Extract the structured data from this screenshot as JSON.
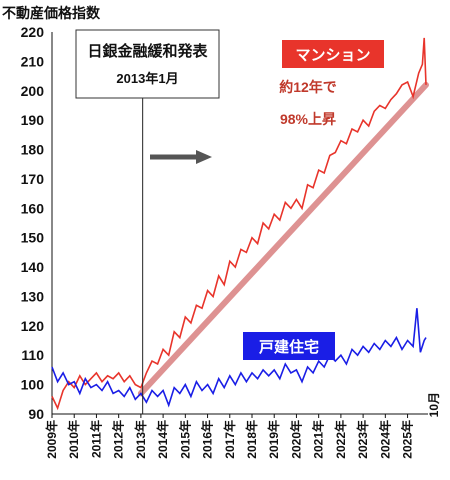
{
  "chart_data": {
    "type": "line",
    "ylabel": "不動産価格指数",
    "ylim": [
      90,
      220
    ],
    "yticks": [
      90,
      100,
      110,
      120,
      130,
      140,
      150,
      160,
      170,
      180,
      190,
      200,
      210,
      220
    ],
    "xlim": [
      2009.0,
      2025.92
    ],
    "xticks": [
      "2009年",
      "2010年",
      "2011年",
      "2012年",
      "2013年",
      "2014年",
      "2015年",
      "2016年",
      "2017年",
      "2018年",
      "2019年",
      "2020年",
      "2021年",
      "2022年",
      "2023年",
      "2024年",
      "2025年"
    ],
    "xtick_values": [
      2009,
      2010,
      2011,
      2012,
      2013,
      2014,
      2015,
      2016,
      2017,
      2018,
      2019,
      2020,
      2021,
      2022,
      2023,
      2024,
      2025
    ],
    "x_end_label": "10月",
    "grid": false,
    "series": [
      {
        "name": "マンション",
        "color": "#e8342b",
        "x": [
          2009.0,
          2009.25,
          2009.5,
          2009.75,
          2010.0,
          2010.25,
          2010.5,
          2010.75,
          2011.0,
          2011.25,
          2011.5,
          2011.75,
          2012.0,
          2012.25,
          2012.5,
          2012.75,
          2013.0,
          2013.25,
          2013.5,
          2013.75,
          2014.0,
          2014.25,
          2014.5,
          2014.75,
          2015.0,
          2015.25,
          2015.5,
          2015.75,
          2016.0,
          2016.25,
          2016.5,
          2016.75,
          2017.0,
          2017.25,
          2017.5,
          2017.75,
          2018.0,
          2018.25,
          2018.5,
          2018.75,
          2019.0,
          2019.25,
          2019.5,
          2019.75,
          2020.0,
          2020.25,
          2020.5,
          2020.75,
          2021.0,
          2021.25,
          2021.5,
          2021.75,
          2022.0,
          2022.25,
          2022.5,
          2022.75,
          2023.0,
          2023.25,
          2023.5,
          2023.75,
          2024.0,
          2024.25,
          2024.5,
          2024.75,
          2025.0,
          2025.25,
          2025.5,
          2025.67,
          2025.75,
          2025.83
        ],
        "values": [
          96,
          92,
          98,
          101,
          99,
          103,
          100,
          102,
          104,
          101,
          103,
          102,
          104,
          101,
          103,
          100,
          99,
          104,
          108,
          107,
          112,
          110,
          118,
          116,
          123,
          121,
          127,
          126,
          132,
          130,
          137,
          134,
          142,
          140,
          146,
          145,
          150,
          148,
          155,
          153,
          158,
          156,
          162,
          160,
          163,
          160,
          168,
          167,
          173,
          172,
          178,
          179,
          183,
          182,
          187,
          186,
          190,
          188,
          193,
          195,
          194,
          197,
          199,
          202,
          203,
          198,
          206,
          209,
          218,
          202
        ]
      },
      {
        "name": "戸建住宅",
        "color": "#1a1ee6",
        "x": [
          2009.0,
          2009.25,
          2009.5,
          2009.75,
          2010.0,
          2010.25,
          2010.5,
          2010.75,
          2011.0,
          2011.25,
          2011.5,
          2011.75,
          2012.0,
          2012.25,
          2012.5,
          2012.75,
          2013.0,
          2013.25,
          2013.5,
          2013.75,
          2014.0,
          2014.25,
          2014.5,
          2014.75,
          2015.0,
          2015.25,
          2015.5,
          2015.75,
          2016.0,
          2016.25,
          2016.5,
          2016.75,
          2017.0,
          2017.25,
          2017.5,
          2017.75,
          2018.0,
          2018.25,
          2018.5,
          2018.75,
          2019.0,
          2019.25,
          2019.5,
          2019.75,
          2020.0,
          2020.25,
          2020.5,
          2020.75,
          2021.0,
          2021.25,
          2021.5,
          2021.75,
          2022.0,
          2022.25,
          2022.5,
          2022.75,
          2023.0,
          2023.25,
          2023.5,
          2023.75,
          2024.0,
          2024.25,
          2024.5,
          2024.75,
          2025.0,
          2025.25,
          2025.42,
          2025.58,
          2025.75,
          2025.83
        ],
        "values": [
          106,
          101,
          104,
          100,
          101,
          97,
          102,
          99,
          100,
          98,
          101,
          97,
          98,
          96,
          99,
          95,
          97,
          94,
          98,
          96,
          98,
          93,
          99,
          97,
          100,
          96,
          101,
          98,
          100,
          97,
          102,
          99,
          103,
          100,
          104,
          101,
          104,
          102,
          105,
          103,
          105,
          102,
          107,
          104,
          105,
          101,
          106,
          104,
          108,
          106,
          110,
          108,
          110,
          107,
          112,
          110,
          113,
          111,
          114,
          112,
          115,
          113,
          116,
          112,
          115,
          113,
          126,
          111,
          115,
          116
        ]
      }
    ],
    "trend_line": {
      "from": [
        2013.0,
        97
      ],
      "to": [
        2025.83,
        202
      ],
      "color": "#d98080"
    },
    "event_line_x": 2013.08,
    "annotations": {
      "event_box": {
        "line1": "日銀金融緩和発表",
        "line2": "2013年1月"
      },
      "mansion_badge": "マンション",
      "mansion_note1": "約12年で",
      "mansion_note2": "98%上昇",
      "detached_badge": "戸建住宅"
    }
  }
}
